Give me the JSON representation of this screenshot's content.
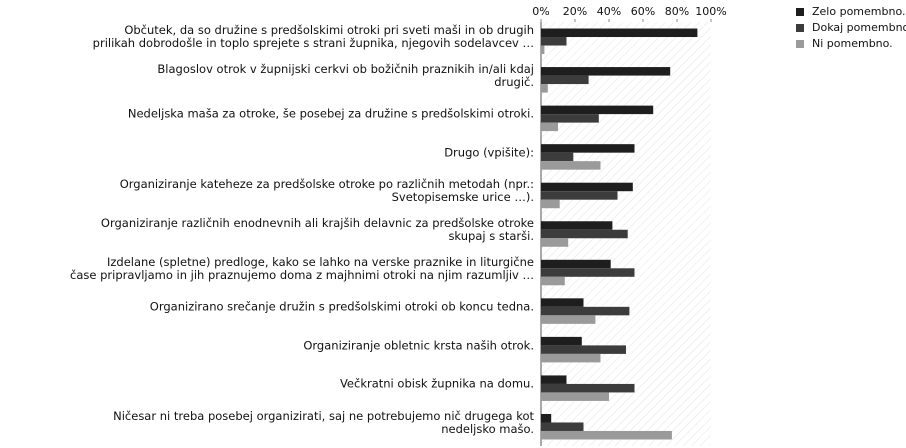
{
  "chart_data": {
    "type": "bar",
    "orientation": "horizontal",
    "categories": [
      "Občutek, da so družine s predšolskimi otroki pri sveti maši in ob drugih\nprilikah dobrodošle in toplo sprejete s strani župnika, njegovih sodelavcev …",
      "Blagoslov otrok v župnijski cerkvi ob božičnih praznikih in/ali kdaj\ndrugič.",
      "Nedeljska maša za otroke, še posebej za družine s predšolskimi otroki.",
      "Drugo (vpišite):",
      "Organiziranje kateheze za predšolske otroke po različnih metodah (npr.:\nSvetopisemske urice …).",
      "Organiziranje različnih enodnevnih ali krajših delavnic za predšolske otroke\nskupaj s starši.",
      "Izdelane (spletne) predloge, kako se lahko na verske praznike in liturgične\nčase pripravljamo in jih praznujemo doma z majhnimi otroki na njim razumljiv …",
      "Organizirano srečanje družin s predšolskimi otroki ob koncu tedna.",
      "Organiziranje obletnic krsta naših otrok.",
      "Večkratni obisk župnika na domu.",
      "Ničesar ni treba posebej organizirati, saj ne potrebujemo nič drugega kot\nnedeljsko mašo."
    ],
    "series": [
      {
        "name": "Zelo pomembno.",
        "color": "#1e1e1e",
        "values": [
          92,
          76,
          66,
          55,
          54,
          42,
          41,
          25,
          24,
          15,
          6
        ]
      },
      {
        "name": "Dokaj pomembno.",
        "color": "#3c3c3c",
        "values": [
          15,
          28,
          34,
          19,
          45,
          51,
          55,
          52,
          50,
          55,
          25
        ]
      },
      {
        "name": "Ni pomembno.",
        "color": "#9a9a9a",
        "values": [
          2,
          4,
          10,
          35,
          11,
          16,
          14,
          32,
          35,
          40,
          77
        ]
      }
    ],
    "xlim": [
      0,
      100
    ],
    "xticks": [
      {
        "value": 0,
        "label": "0%"
      },
      {
        "value": 20,
        "label": "20%"
      },
      {
        "value": 40,
        "label": "40%"
      },
      {
        "value": 60,
        "label": "60%"
      },
      {
        "value": 80,
        "label": "80%"
      },
      {
        "value": 100,
        "label": "100%"
      }
    ],
    "legend": "top-right"
  }
}
